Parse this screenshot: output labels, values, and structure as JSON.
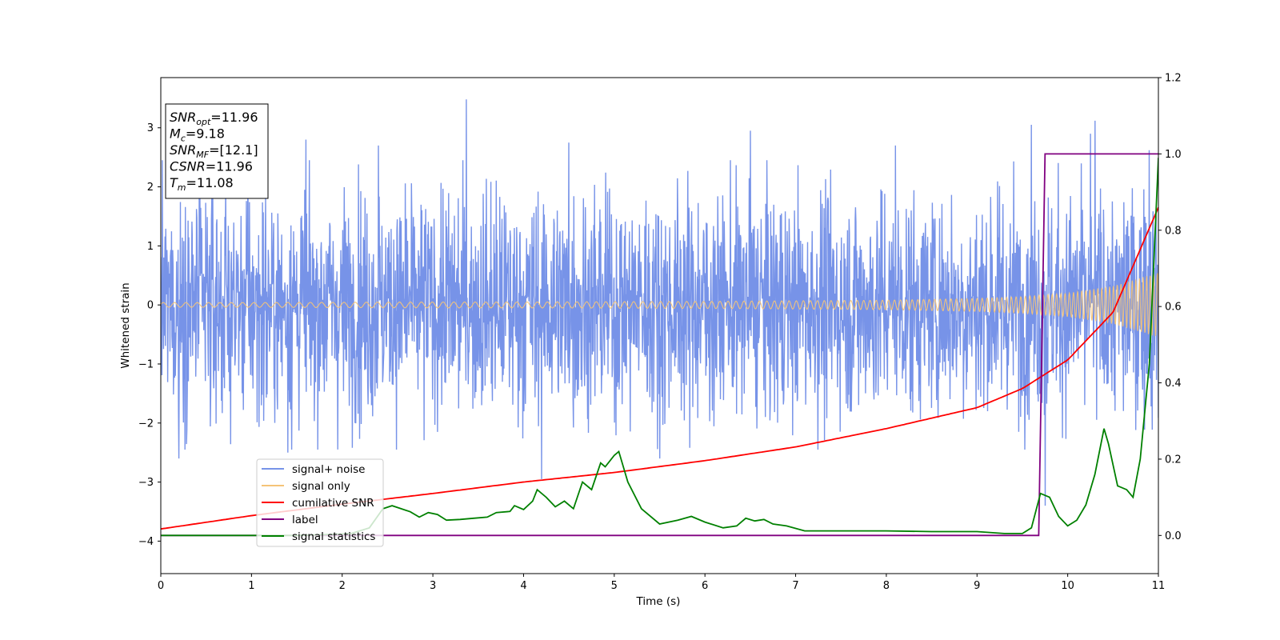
{
  "chart_data": {
    "type": "line",
    "xlabel": "Time (s)",
    "ylabel": "Whitened strain",
    "xlim": [
      0,
      11
    ],
    "ylim": [
      -4.55,
      3.85
    ],
    "y2lim": [
      -0.1,
      1.2
    ],
    "xticks": [
      "0",
      "1",
      "2",
      "3",
      "4",
      "5",
      "6",
      "7",
      "8",
      "9",
      "10",
      "11"
    ],
    "yticks": [
      "3",
      "2",
      "1",
      "0",
      "−1",
      "−2",
      "−3",
      "−4"
    ],
    "y2ticks": [
      "1.2",
      "1.0",
      "0.8",
      "0.6",
      "0.4",
      "0.2",
      "0.0"
    ],
    "grid": false,
    "legend_position": "lower-left",
    "info_box": {
      "position": "top-left",
      "lines": [
        {
          "sym": "SNR",
          "sub": "opt",
          "rest": "=11.96"
        },
        {
          "sym": "M",
          "sub": "c",
          "rest": "=9.18"
        },
        {
          "sym": "SNR",
          "sub": "MF",
          "rest": "=[12.1]"
        },
        {
          "sym": "CSNR",
          "sub": "",
          "rest": "=11.96"
        },
        {
          "sym": "T",
          "sub": "m",
          "rest": "=11.08"
        }
      ]
    },
    "series": [
      {
        "name": "signal+ noise",
        "axis": "left",
        "color": "#7793e8",
        "noise_sigma": 0.95,
        "x": [
          0.2,
          1.4,
          1.6,
          2.4,
          3.37,
          4.2,
          4.5,
          5.5,
          6.5,
          8.1,
          9.6,
          9.75,
          10.25,
          10.3,
          10.9
        ],
        "y": [
          -2.6,
          -2.5,
          2.8,
          2.7,
          3.48,
          -2.95,
          2.75,
          -2.6,
          2.95,
          2.7,
          3.05,
          -3.4,
          2.9,
          3.12,
          2.62
        ]
      },
      {
        "name": "signal only",
        "axis": "left",
        "color": "#f5c478",
        "x": [
          0,
          1,
          2,
          3,
          4,
          5,
          6,
          7,
          8,
          9,
          9.5,
          10,
          10.5,
          11
        ],
        "envelope": [
          0.04,
          0.04,
          0.045,
          0.05,
          0.05,
          0.055,
          0.06,
          0.07,
          0.08,
          0.11,
          0.14,
          0.2,
          0.32,
          0.55
        ]
      },
      {
        "name": "cumilative SNR",
        "axis": "right",
        "color": "#ff0000",
        "x": [
          0,
          1,
          2,
          3,
          4,
          5,
          6,
          7,
          8,
          9,
          9.5,
          10,
          10.5,
          11
        ],
        "values": [
          0.017,
          0.052,
          0.082,
          0.11,
          0.14,
          0.165,
          0.196,
          0.232,
          0.28,
          0.335,
          0.385,
          0.46,
          0.585,
          0.86
        ]
      },
      {
        "name": "label",
        "axis": "right",
        "color": "#800080",
        "x": [
          0,
          9.68,
          9.75,
          11
        ],
        "values": [
          0,
          0,
          1,
          1
        ]
      },
      {
        "name": "signal statistics",
        "axis": "right",
        "color": "#008000",
        "x": [
          0,
          0.5,
          1,
          1.5,
          1.9,
          2.1,
          2.3,
          2.45,
          2.55,
          2.65,
          2.75,
          2.85,
          2.95,
          3.05,
          3.15,
          3.3,
          3.45,
          3.6,
          3.7,
          3.85,
          3.9,
          4.0,
          4.1,
          4.15,
          4.25,
          4.35,
          4.45,
          4.55,
          4.65,
          4.75,
          4.85,
          4.9,
          5.0,
          5.05,
          5.15,
          5.3,
          5.5,
          5.7,
          5.85,
          6.0,
          6.2,
          6.35,
          6.45,
          6.55,
          6.65,
          6.75,
          6.9,
          7.1,
          7.5,
          8.0,
          8.5,
          9.0,
          9.3,
          9.5,
          9.6,
          9.7,
          9.8,
          9.9,
          10.0,
          10.1,
          10.2,
          10.3,
          10.4,
          10.45,
          10.55,
          10.65,
          10.72,
          10.8,
          10.9,
          11.0
        ],
        "values": [
          0,
          0,
          0,
          0.0,
          0.003,
          0.005,
          0.02,
          0.07,
          0.078,
          0.07,
          0.062,
          0.048,
          0.06,
          0.055,
          0.04,
          0.042,
          0.045,
          0.048,
          0.06,
          0.063,
          0.078,
          0.068,
          0.09,
          0.12,
          0.1,
          0.075,
          0.09,
          0.07,
          0.14,
          0.12,
          0.19,
          0.18,
          0.21,
          0.22,
          0.14,
          0.07,
          0.03,
          0.04,
          0.05,
          0.035,
          0.02,
          0.025,
          0.045,
          0.038,
          0.042,
          0.03,
          0.025,
          0.012,
          0.012,
          0.012,
          0.01,
          0.01,
          0.005,
          0.005,
          0.02,
          0.11,
          0.1,
          0.05,
          0.025,
          0.04,
          0.08,
          0.16,
          0.28,
          0.24,
          0.13,
          0.12,
          0.1,
          0.2,
          0.45,
          0.99
        ]
      }
    ]
  }
}
